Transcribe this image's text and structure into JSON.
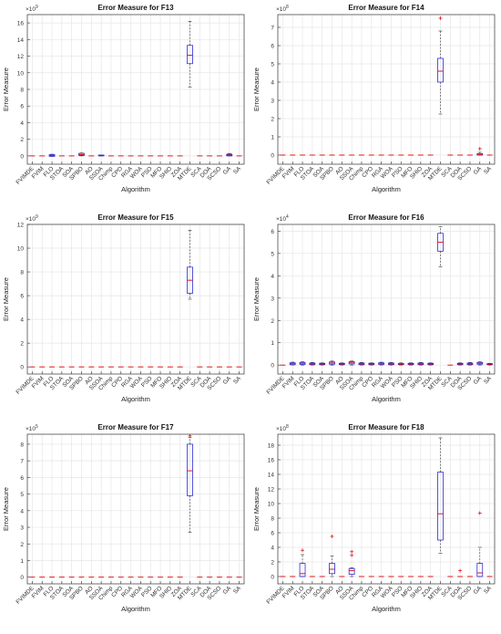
{
  "chart_data": [
    {
      "type": "boxplot",
      "title": "Error Measure for F13",
      "xlabel": "Algorithm",
      "ylabel": "Error Measure",
      "exponent": "×10^9",
      "ylim": [
        -1,
        17
      ],
      "yticks": [
        0,
        2,
        4,
        6,
        8,
        10,
        12,
        14,
        16
      ],
      "categories": [
        "FVIMDE",
        "FVIM",
        "FLO",
        "STOA",
        "SOA",
        "SPBO",
        "AO",
        "SSOA",
        "Chimp",
        "CPO",
        "RGA",
        "WOA",
        "PSO",
        "MFO",
        "SHIO",
        "ZOA",
        "MTDE",
        "SCA",
        "DOA",
        "SCSO",
        "GA",
        "SA"
      ],
      "grid": true,
      "boxes": [
        {
          "category": "FLO",
          "q1": -0.05,
          "median": 0.05,
          "q3": 0.15,
          "whisker_low": -0.05,
          "whisker_high": 0.2
        },
        {
          "category": "SPBO",
          "q1": 0.05,
          "median": 0.15,
          "q3": 0.3,
          "whisker_low": 0,
          "whisker_high": 0.35
        },
        {
          "category": "SSOA",
          "q1": 0,
          "median": 0.05,
          "q3": 0.1,
          "whisker_low": 0,
          "whisker_high": 0.1
        },
        {
          "category": "MTDE",
          "q1": 11.1,
          "median": 12.1,
          "q3": 13.3,
          "whisker_low": 8.3,
          "whisker_high": 16.2
        },
        {
          "category": "GA",
          "q1": 0,
          "median": 0.1,
          "q3": 0.2,
          "whisker_low": 0,
          "whisker_high": 0.3
        }
      ]
    },
    {
      "type": "boxplot",
      "title": "Error Measure for F14",
      "xlabel": "Algorithm",
      "ylabel": "Error Measure",
      "exponent": "×10^8",
      "ylim": [
        -0.5,
        7.7
      ],
      "yticks": [
        0,
        1,
        2,
        3,
        4,
        5,
        6,
        7
      ],
      "categories": [
        "FVIMDE",
        "FVIM",
        "FLO",
        "STOA",
        "SOA",
        "SPBO",
        "AO",
        "SSOA",
        "Chimp",
        "CPO",
        "RGA",
        "WOA",
        "PSO",
        "MFO",
        "SHIO",
        "ZOA",
        "MTDE",
        "SCA",
        "DOA",
        "SCSO",
        "GA",
        "SA"
      ],
      "grid": true,
      "boxes": [
        {
          "category": "MTDE",
          "q1": 4.0,
          "median": 4.6,
          "q3": 5.3,
          "whisker_low": 2.25,
          "whisker_high": 6.8,
          "outliers": [
            7.5
          ]
        },
        {
          "category": "GA",
          "q1": 0,
          "median": 0.02,
          "q3": 0.08,
          "whisker_low": 0,
          "whisker_high": 0.15,
          "outliers": [
            0.35
          ]
        }
      ]
    },
    {
      "type": "boxplot",
      "title": "Error Measure for F15",
      "xlabel": "Algorithm",
      "ylabel": "Error Measure",
      "exponent": "×10^9",
      "ylim": [
        -0.6,
        12
      ],
      "yticks": [
        0,
        2,
        4,
        6,
        8,
        10,
        12
      ],
      "categories": [
        "FVIMDE",
        "FVIM",
        "FLO",
        "STOA",
        "SOA",
        "SPBO",
        "AO",
        "SSOA",
        "Chimp",
        "CPO",
        "RGA",
        "WOA",
        "PSO",
        "MFO",
        "SHIO",
        "ZOA",
        "MTDE",
        "SCA",
        "DOA",
        "SCSO",
        "GA",
        "SA"
      ],
      "grid": true,
      "boxes": [
        {
          "category": "MTDE",
          "q1": 6.2,
          "median": 7.3,
          "q3": 8.4,
          "whisker_low": 5.7,
          "whisker_high": 11.5
        }
      ]
    },
    {
      "type": "boxplot",
      "title": "Error Measure for F16",
      "xlabel": "Algorithm",
      "ylabel": "Error Measure",
      "exponent": "×10^4",
      "ylim": [
        -0.4,
        6.3
      ],
      "yticks": [
        0,
        1,
        2,
        3,
        4,
        5,
        6
      ],
      "categories": [
        "FVIMDE",
        "FVIM",
        "FLO",
        "STOA",
        "SOA",
        "SPBO",
        "AO",
        "SSOA",
        "Chimp",
        "CPO",
        "RGA",
        "WOA",
        "PSO",
        "MFO",
        "SHIO",
        "ZOA",
        "MTDE",
        "SCA",
        "DOA",
        "SCSO",
        "GA",
        "SA"
      ],
      "grid": true,
      "boxes": [
        {
          "category": "FVIM",
          "q1": 0.02,
          "median": 0.06,
          "q3": 0.1,
          "whisker_low": 0,
          "whisker_high": 0.13
        },
        {
          "category": "FLO",
          "q1": 0.03,
          "median": 0.08,
          "q3": 0.12,
          "whisker_low": 0,
          "whisker_high": 0.15
        },
        {
          "category": "STOA",
          "q1": 0.02,
          "median": 0.05,
          "q3": 0.09,
          "whisker_low": 0,
          "whisker_high": 0.12
        },
        {
          "category": "SOA",
          "q1": 0.02,
          "median": 0.05,
          "q3": 0.08,
          "whisker_low": 0,
          "whisker_high": 0.1
        },
        {
          "category": "SPBO",
          "q1": 0.04,
          "median": 0.09,
          "q3": 0.14,
          "whisker_low": 0,
          "whisker_high": 0.18
        },
        {
          "category": "AO",
          "q1": 0.02,
          "median": 0.05,
          "q3": 0.08,
          "whisker_low": 0,
          "whisker_high": 0.1
        },
        {
          "category": "SSOA",
          "q1": 0.05,
          "median": 0.1,
          "q3": 0.15,
          "whisker_low": 0,
          "whisker_high": 0.18
        },
        {
          "category": "Chimp",
          "q1": 0.02,
          "median": 0.05,
          "q3": 0.09,
          "whisker_low": 0,
          "whisker_high": 0.12
        },
        {
          "category": "CPO",
          "q1": 0.02,
          "median": 0.05,
          "q3": 0.08,
          "whisker_low": 0,
          "whisker_high": 0.1
        },
        {
          "category": "RGA",
          "q1": 0.03,
          "median": 0.06,
          "q3": 0.1,
          "whisker_low": 0,
          "whisker_high": 0.13
        },
        {
          "category": "WOA",
          "q1": 0.02,
          "median": 0.05,
          "q3": 0.09,
          "whisker_low": 0,
          "whisker_high": 0.12
        },
        {
          "category": "PSO",
          "q1": 0.02,
          "median": 0.04,
          "q3": 0.07,
          "whisker_low": 0,
          "whisker_high": 0.1
        },
        {
          "category": "MFO",
          "q1": 0.02,
          "median": 0.05,
          "q3": 0.08,
          "whisker_low": 0,
          "whisker_high": 0.1
        },
        {
          "category": "SHIO",
          "q1": 0.02,
          "median": 0.05,
          "q3": 0.09,
          "whisker_low": 0,
          "whisker_high": 0.12
        },
        {
          "category": "ZOA",
          "q1": 0.02,
          "median": 0.05,
          "q3": 0.08,
          "whisker_low": 0,
          "whisker_high": 0.1
        },
        {
          "category": "MTDE",
          "q1": 5.1,
          "median": 5.5,
          "q3": 5.9,
          "whisker_low": 4.4,
          "whisker_high": 6.2
        },
        {
          "category": "DOA",
          "q1": 0.02,
          "median": 0.05,
          "q3": 0.08,
          "whisker_low": 0,
          "whisker_high": 0.1
        },
        {
          "category": "SCSO",
          "q1": 0.02,
          "median": 0.05,
          "q3": 0.09,
          "whisker_low": 0,
          "whisker_high": 0.12
        },
        {
          "category": "GA",
          "q1": 0.04,
          "median": 0.08,
          "q3": 0.12,
          "whisker_low": 0,
          "whisker_high": 0.15
        },
        {
          "category": "SA",
          "q1": 0.02,
          "median": 0.04,
          "q3": 0.06,
          "whisker_low": 0,
          "whisker_high": 0.08
        }
      ]
    },
    {
      "type": "boxplot",
      "title": "Error Measure for F17",
      "xlabel": "Algorithm",
      "ylabel": "Error Measure",
      "exponent": "×10^5",
      "ylim": [
        -0.4,
        8.6
      ],
      "yticks": [
        0,
        1,
        2,
        3,
        4,
        5,
        6,
        7,
        8
      ],
      "categories": [
        "FVIMDE",
        "FVIM",
        "FLO",
        "STOA",
        "SOA",
        "SPBO",
        "AO",
        "SSOA",
        "Chimp",
        "CPO",
        "RGA",
        "WOA",
        "PSO",
        "MFO",
        "SHIO",
        "ZOA",
        "MTDE",
        "SCA",
        "DOA",
        "SCSO",
        "GA",
        "SA"
      ],
      "grid": true,
      "boxes": [
        {
          "category": "MTDE",
          "q1": 4.9,
          "median": 6.4,
          "q3": 8.0,
          "whisker_low": 2.7,
          "whisker_high": 8.4,
          "outliers": [
            8.5
          ]
        }
      ]
    },
    {
      "type": "boxplot",
      "title": "Error Measure for F18",
      "xlabel": "Algorithm",
      "ylabel": "Error Measure",
      "exponent": "×10^8",
      "ylim": [
        -1,
        19.5
      ],
      "yticks": [
        0,
        2,
        4,
        6,
        8,
        10,
        12,
        14,
        16,
        18
      ],
      "categories": [
        "FVIMDE",
        "FVIM",
        "FLO",
        "STOA",
        "SOA",
        "SPBO",
        "AO",
        "SSOA",
        "Chimp",
        "CPO",
        "RGA",
        "WOA",
        "PSO",
        "MFO",
        "SHIO",
        "ZOA",
        "MTDE",
        "SCA",
        "DOA",
        "SCSO",
        "GA",
        "SA"
      ],
      "grid": true,
      "boxes": [
        {
          "category": "FLO",
          "q1": 0,
          "median": 0.4,
          "q3": 1.8,
          "whisker_low": 0,
          "whisker_high": 3.0,
          "outliers": [
            3.6
          ]
        },
        {
          "category": "SPBO",
          "q1": 0.4,
          "median": 1.0,
          "q3": 1.8,
          "whisker_low": 0,
          "whisker_high": 2.8,
          "outliers": [
            5.5
          ]
        },
        {
          "category": "SSOA",
          "q1": 0.3,
          "median": 0.8,
          "q3": 1.1,
          "whisker_low": 0,
          "whisker_high": 1.2,
          "outliers": [
            2.9,
            3.4
          ]
        },
        {
          "category": "MTDE",
          "q1": 5.0,
          "median": 8.6,
          "q3": 14.3,
          "whisker_low": 3.2,
          "whisker_high": 19.0
        },
        {
          "category": "DOA",
          "outliers": [
            0.8
          ]
        },
        {
          "category": "GA",
          "q1": 0,
          "median": 0.5,
          "q3": 1.8,
          "whisker_low": 0,
          "whisker_high": 4.0,
          "outliers": [
            8.7
          ]
        }
      ]
    }
  ]
}
